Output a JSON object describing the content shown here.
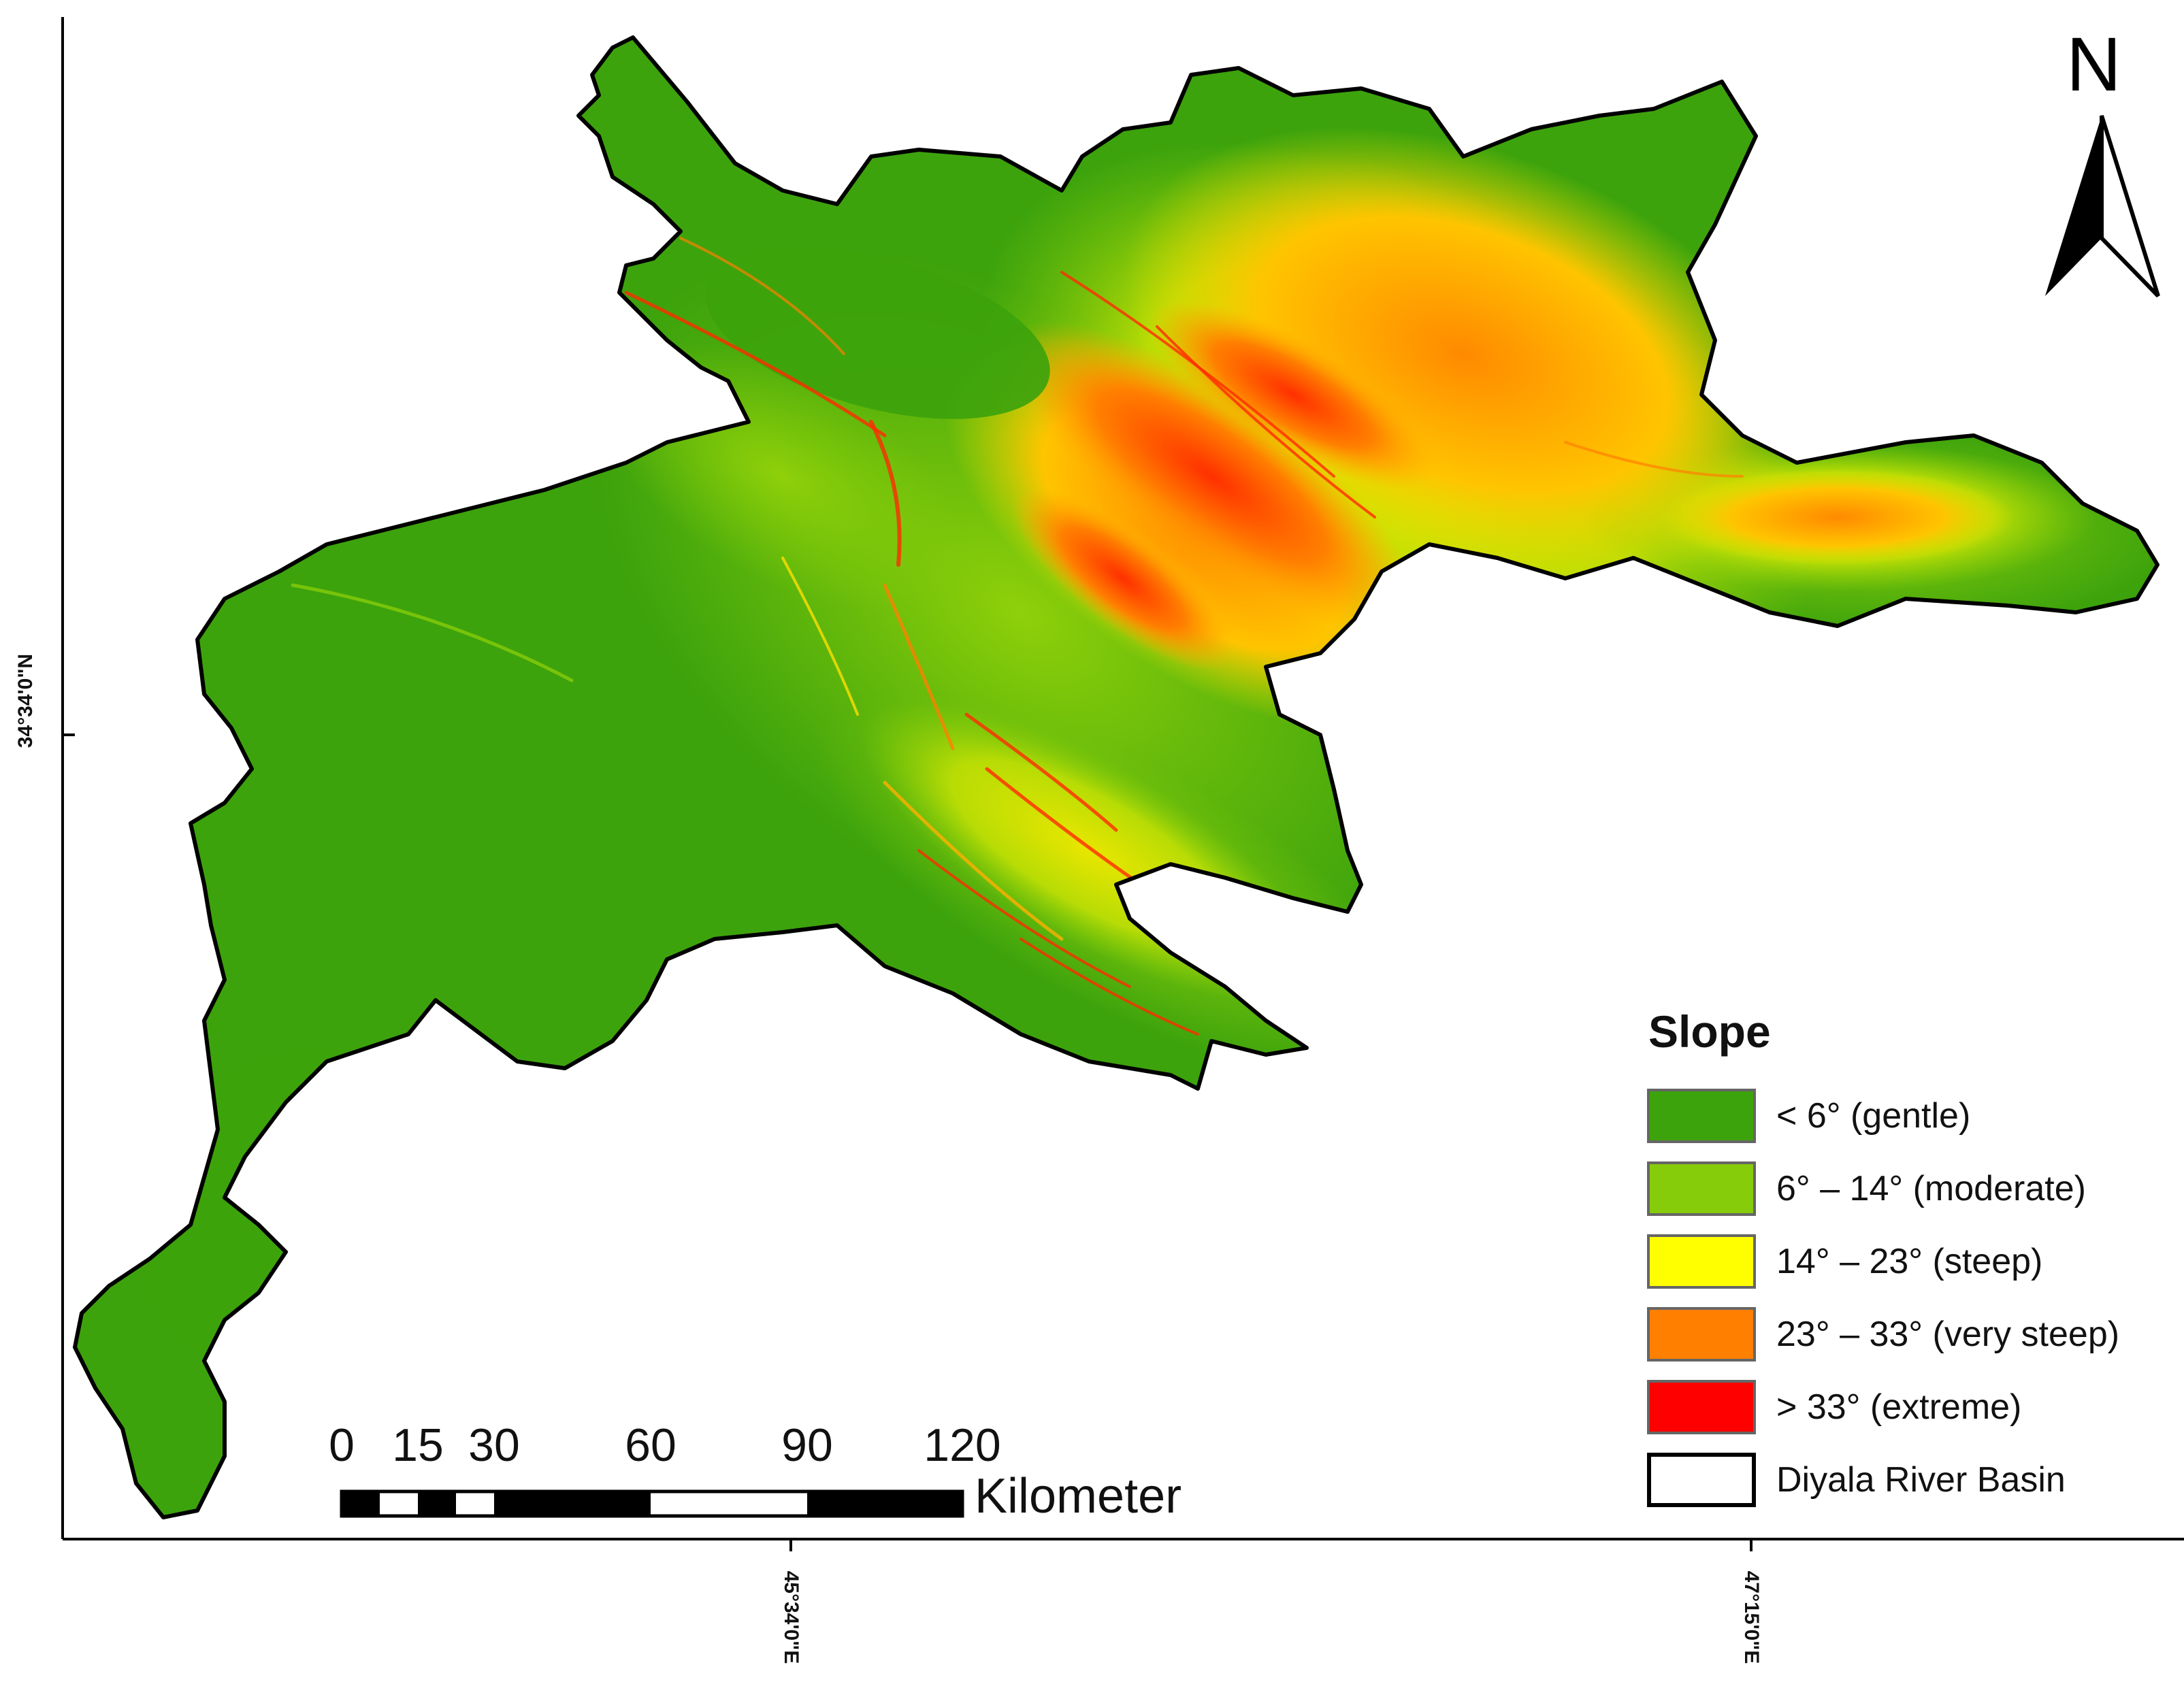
{
  "map": {
    "latitude_label": "34°34'0\"N",
    "longitude_labels": [
      "45°34'0\"E",
      "47°15'0\"E"
    ],
    "north_arrow_letter": "N"
  },
  "legend": {
    "title": "Slope",
    "items": [
      {
        "label": "< 6°  (gentle)",
        "color": "#3da30c"
      },
      {
        "label": "6° – 14° (moderate)",
        "color": "#86cc0a"
      },
      {
        "label": "14° – 23° (steep)",
        "color": "#ffff00"
      },
      {
        "label": "23° – 33° (very steep)",
        "color": "#ff7f00"
      },
      {
        "label": "> 33° (extreme)",
        "color": "#ff0000"
      },
      {
        "label": "Diyala River Basin",
        "color": "#ffffff"
      }
    ]
  },
  "scale_bar": {
    "ticks": [
      "0",
      "15",
      "30",
      "60",
      "90",
      "120"
    ],
    "unit": "Kilometer"
  },
  "colors": {
    "gentle": "#3da30c",
    "moderate": "#86cc0a",
    "steep": "#ffff00",
    "very_steep": "#ff7f00",
    "extreme": "#ff0000",
    "boundary": "#000000"
  }
}
